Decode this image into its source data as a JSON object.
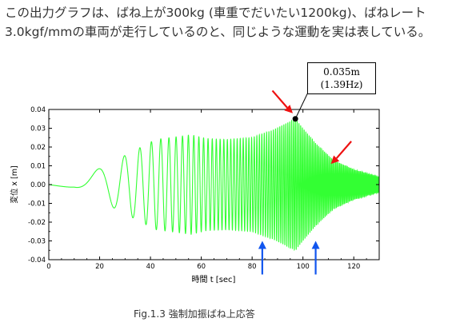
{
  "intro": {
    "line1": "この出力グラフは、ばね上が300kg (車重でだいたい1200kg)、ばねレート",
    "line2": "3.0kgf/mmの車両が走行しているのと、同じような運動を実は表している。"
  },
  "caption": "Fig.1.3 強制加振ばね上応答",
  "chart_data": {
    "type": "line",
    "title": "",
    "xlabel": "時間 t [sec]",
    "ylabel": "変位 x [m]",
    "xlim": [
      0,
      130
    ],
    "ylim": [
      -0.04,
      0.04
    ],
    "xticks": [
      0,
      20,
      40,
      60,
      80,
      100,
      120
    ],
    "yticks": [
      0.04,
      0.03,
      0.02,
      0.01,
      0.0,
      -0.01,
      -0.02,
      -0.03,
      -0.04
    ],
    "ytick_labels": [
      "0.04",
      "0.03",
      "0.02",
      "0.01",
      "0.00",
      "-0.01",
      "-0.02",
      "-0.03",
      "-0.04"
    ],
    "grid": false,
    "series_color": "#33ff33",
    "peak": {
      "x": 97,
      "y": 0.035
    },
    "envelope": [
      {
        "x": 0,
        "y": 0.0
      },
      {
        "x": 10,
        "y": 0.002
      },
      {
        "x": 25,
        "y": 0.012
      },
      {
        "x": 42,
        "y": 0.024
      },
      {
        "x": 56,
        "y": 0.0265
      },
      {
        "x": 62,
        "y": 0.0245
      },
      {
        "x": 70,
        "y": 0.024
      },
      {
        "x": 80,
        "y": 0.025
      },
      {
        "x": 88,
        "y": 0.029
      },
      {
        "x": 94,
        "y": 0.033
      },
      {
        "x": 97,
        "y": 0.035
      },
      {
        "x": 100,
        "y": 0.03
      },
      {
        "x": 105,
        "y": 0.022
      },
      {
        "x": 112,
        "y": 0.013
      },
      {
        "x": 120,
        "y": 0.008
      },
      {
        "x": 130,
        "y": 0.004
      }
    ],
    "frequency_sweep": {
      "t_start": 0,
      "f_start": 0.006,
      "t_end": 130,
      "f_end": 2.5,
      "chirp_exponent": 2.0
    },
    "annotation": {
      "line1": "0.035m",
      "line2": "(1.39Hz)"
    },
    "arrows": [
      {
        "color": "#ee1111",
        "direction": "down-right",
        "target": {
          "x": 96,
          "y": 0.038
        }
      },
      {
        "color": "#ee1111",
        "direction": "down-left",
        "target": {
          "x": 111,
          "y": 0.011
        }
      },
      {
        "color": "#1155ee",
        "direction": "up",
        "target": {
          "x": 84,
          "y": -0.03
        }
      },
      {
        "color": "#1155ee",
        "direction": "up",
        "target": {
          "x": 105,
          "y": -0.03
        }
      }
    ]
  }
}
